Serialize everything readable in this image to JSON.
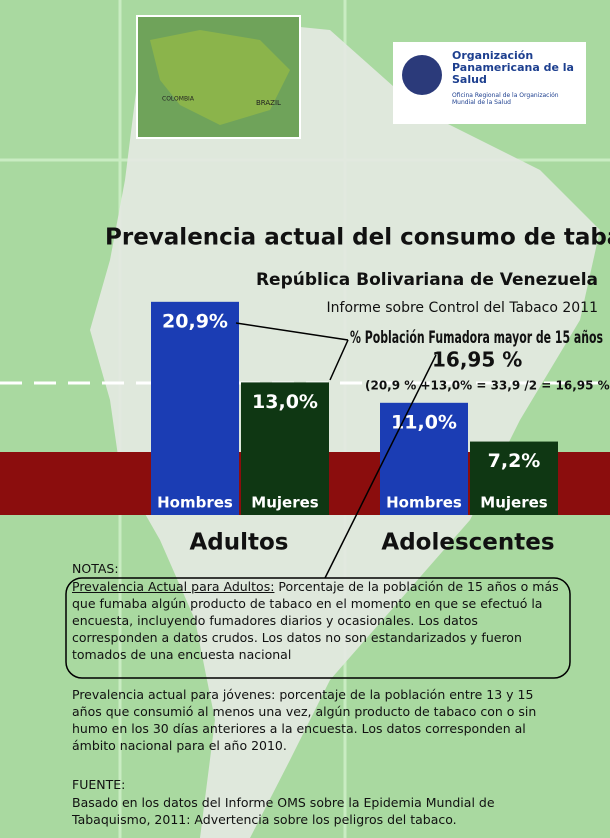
{
  "chart_data": {
    "type": "bar",
    "title": "Prevalencia actual del consumo de tabaco",
    "subtitle": "República Bolivariana de Venezuela",
    "source_report": "Informe sobre Control del Tabaco 2011",
    "annotation": "% Población Fumadora mayor de 15 años",
    "annotation_value": "16,95 %",
    "annotation_formula": "(20,9 % +13,0% = 33,9 /2 = 16,95 %)",
    "categories": [
      "Adultos",
      "Adolescentes"
    ],
    "series": [
      {
        "name": "Hombres",
        "color": "#1b3db4",
        "values": [
          20.9,
          11.0
        ],
        "value_labels": [
          "20,9%",
          "11,0%"
        ]
      },
      {
        "name": "Mujeres",
        "color": "#0f3713",
        "values": [
          13.0,
          7.2
        ],
        "value_labels": [
          "13,0%",
          "7,2%"
        ]
      }
    ]
  },
  "logo": {
    "name": "Organización Panamericana de la Salud",
    "sub": "Oficina Regional de la Organización Mundial de la Salud"
  },
  "map": {
    "labels": [
      "COLOMBIA",
      "BRAZIL"
    ]
  },
  "notes": {
    "heading": "NOTAS:",
    "adult_term": "Prevalencia Actual para Adultos:",
    "adult_text": "Porcentaje de la población de 15 años o más que fumaba algún producto de tabaco en el momento en que se efectuó la encuesta, incluyendo fumadores diarios y ocasionales. Los datos corresponden a datos crudos. Los datos no son estandarizados y fueron tomados de una encuesta nacional",
    "youth_text": "Prevalencia actual para jóvenes: porcentaje de la población entre 13 y 15 años que consumió al menos una vez, algún producto de tabaco con o sin humo en los 30 días anteriores a la encuesta. Los datos corresponden al ámbito nacional para el año 2010.",
    "source_heading": "FUENTE:",
    "source_text": "Basado en los datos del Informe OMS sobre la Epidemia Mundial de Tabaquismo, 2011: Advertencia sobre los peligros del tabaco."
  }
}
